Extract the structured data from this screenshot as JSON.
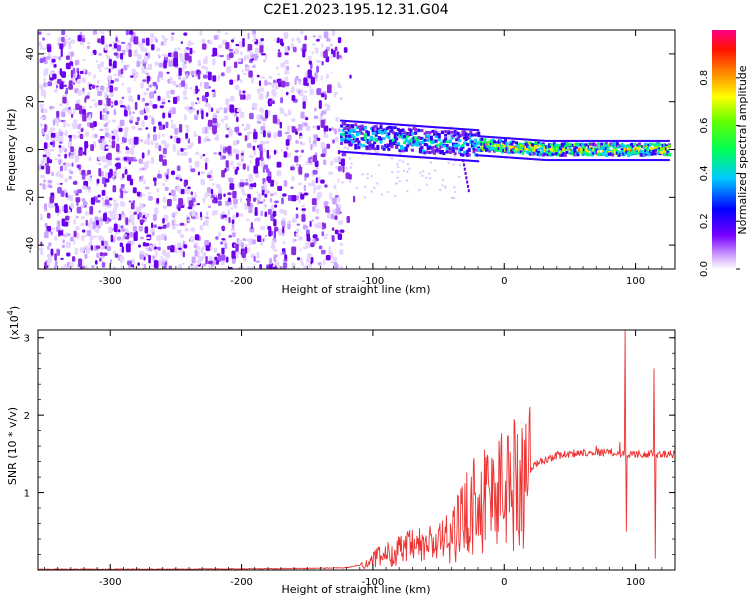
{
  "title": "C2E1.2023.195.12.31.G04",
  "chart_data": [
    {
      "type": "heatmap",
      "xlabel": "Height of straight line (km)",
      "ylabel": "Frequency (Hz)",
      "xlim": [
        -355,
        130
      ],
      "ylim": [
        -50,
        50
      ],
      "x_ticks": [
        -300,
        -200,
        -100,
        0,
        100
      ],
      "y_ticks": [
        -40,
        -20,
        0,
        20,
        40
      ],
      "colorbar": {
        "label": "Normalized spectral amplitude",
        "range": [
          0,
          1
        ],
        "ticks": [
          "0.0",
          "0.2",
          "0.4",
          "0.6",
          "0.8"
        ],
        "colors": [
          "#ffffff",
          "#cc99ff",
          "#6600ff",
          "#0000ff",
          "#00ffff",
          "#00ff00",
          "#ffff00",
          "#ff8000",
          "#ff0000",
          "#ff0080"
        ]
      },
      "regions": [
        {
          "x_range": [
            -355,
            -125
          ],
          "freq_range": [
            -50,
            50
          ],
          "amplitude_range": [
            0.0,
            0.15
          ],
          "description_color": "violet"
        },
        {
          "x_range": [
            -125,
            125
          ],
          "freq_center_start": 6,
          "freq_center_end": 0,
          "amplitude_range": [
            0.3,
            1.0
          ],
          "description_color": "cyan-green-red"
        }
      ]
    },
    {
      "type": "line",
      "xlabel": "Height of straight line (km)",
      "ylabel": "SNR (10 * v/v)",
      "y_multiplier_label": "(x10",
      "y_multiplier_exp": "4",
      "xlim": [
        -355,
        130
      ],
      "ylim": [
        0,
        3.1
      ],
      "x_ticks": [
        -300,
        -200,
        -100,
        0,
        100
      ],
      "y_ticks": [
        1,
        2,
        3
      ],
      "series_color": "#ee3333",
      "profile": [
        [
          -355,
          0.01
        ],
        [
          -300,
          0.01
        ],
        [
          -250,
          0.01
        ],
        [
          -200,
          0.015
        ],
        [
          -150,
          0.02
        ],
        [
          -120,
          0.03
        ],
        [
          -105,
          0.08
        ],
        [
          -95,
          0.18
        ],
        [
          -85,
          0.22
        ],
        [
          -75,
          0.28
        ],
        [
          -60,
          0.32
        ],
        [
          -45,
          0.38
        ],
        [
          -35,
          0.55
        ],
        [
          -25,
          0.85
        ],
        [
          -15,
          0.95
        ],
        [
          -5,
          1.02
        ],
        [
          5,
          1.12
        ],
        [
          15,
          1.22
        ],
        [
          25,
          1.38
        ],
        [
          40,
          1.48
        ],
        [
          60,
          1.52
        ],
        [
          80,
          1.52
        ],
        [
          90,
          1.5
        ],
        [
          100,
          1.5
        ],
        [
          110,
          1.5
        ],
        [
          130,
          1.49
        ]
      ],
      "spikes": [
        [
          -15,
          1.55
        ],
        [
          -8,
          1.3
        ],
        [
          10,
          1.75
        ],
        [
          -25,
          1.2
        ],
        [
          92,
          3.1
        ],
        [
          93,
          0.5
        ],
        [
          114,
          2.6
        ],
        [
          115,
          0.15
        ],
        [
          88,
          1.65
        ],
        [
          70,
          1.6
        ]
      ]
    }
  ]
}
